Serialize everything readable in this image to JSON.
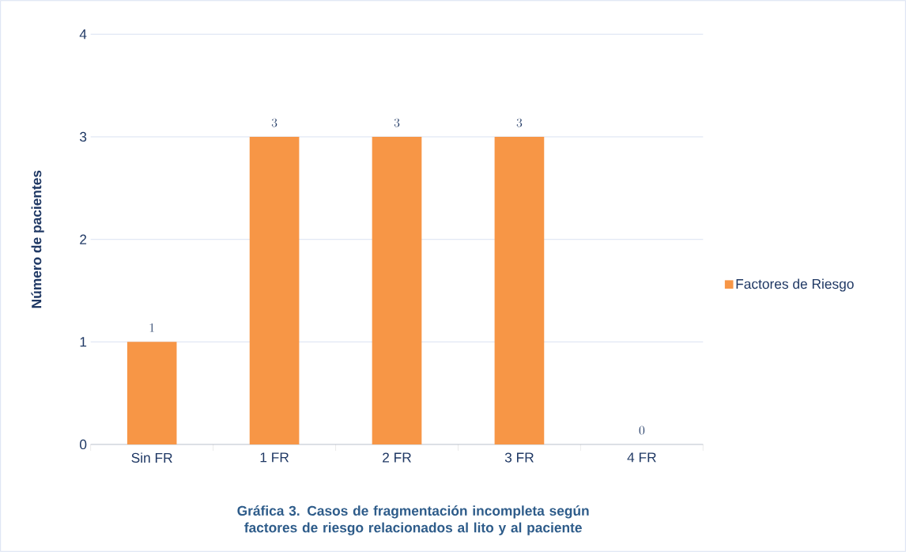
{
  "chart_data": {
    "type": "bar",
    "title": "Gráfica 3. Casos de fragmentación incompleta según factores de riesgo relacionados al lito y al paciente",
    "ylabel": "Número de pacientes",
    "categories": [
      "Sin FR",
      "1 FR",
      "2 FR",
      "3 FR",
      "4 FR"
    ],
    "series": [
      {
        "name": "Factores de Riesgo",
        "color": "#f79646",
        "values": [
          1,
          3,
          3,
          3,
          0
        ]
      }
    ],
    "ylim": [
      0,
      4
    ],
    "yticks": [
      0,
      1,
      2,
      3,
      4
    ],
    "grid": "y",
    "legend": "right",
    "data_labels": true
  }
}
